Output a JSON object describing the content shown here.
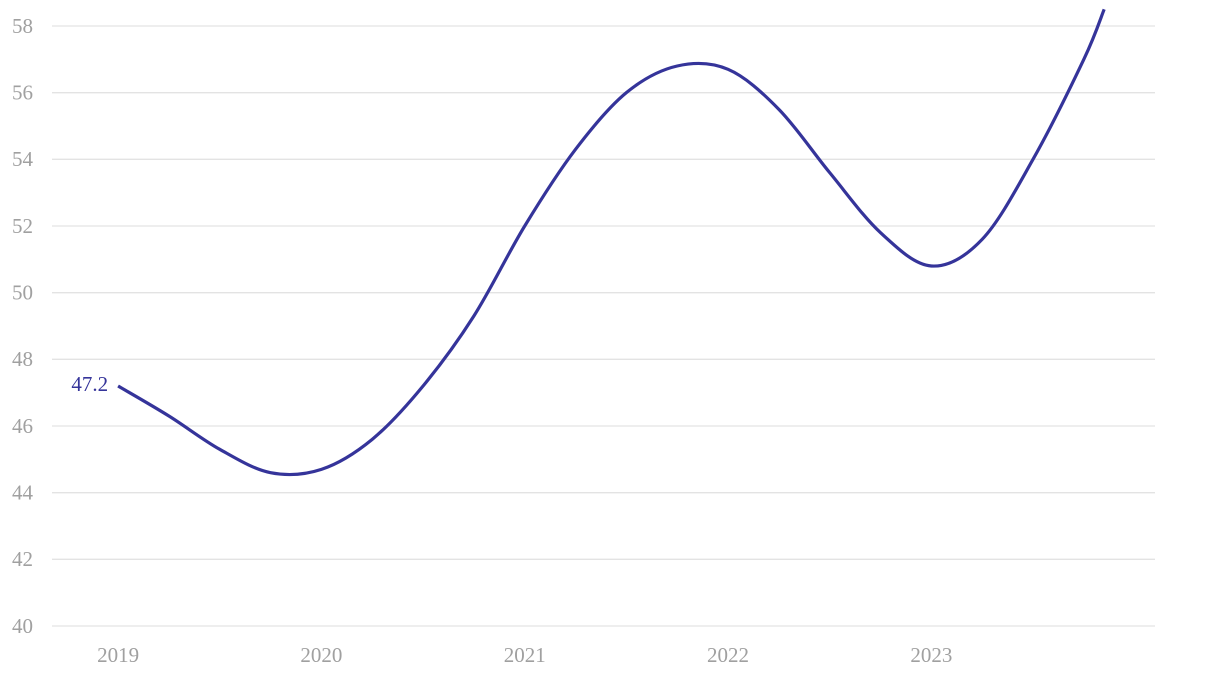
{
  "chart_data": {
    "type": "line",
    "x": [
      2019,
      2019.25,
      2019.5,
      2019.75,
      2020,
      2020.25,
      2020.5,
      2020.75,
      2021,
      2021.25,
      2021.5,
      2021.75,
      2022,
      2022.25,
      2022.5,
      2022.75,
      2023,
      2023.25,
      2023.5,
      2023.75,
      2023.85
    ],
    "values": [
      47.2,
      46.3,
      45.3,
      44.6,
      44.7,
      45.6,
      47.2,
      49.3,
      52.0,
      54.3,
      56.0,
      56.8,
      56.7,
      55.5,
      53.6,
      51.8,
      50.8,
      51.6,
      54.0,
      57.0,
      58.5
    ],
    "color": "#35349a",
    "xlim": [
      2018.675,
      2024.1
    ],
    "xticks": [
      2019,
      2020,
      2021,
      2022,
      2023
    ],
    "ylim": [
      40,
      58
    ],
    "yticks": [
      40,
      42,
      44,
      46,
      48,
      50,
      52,
      54,
      56,
      58
    ],
    "grid": true
  }
}
